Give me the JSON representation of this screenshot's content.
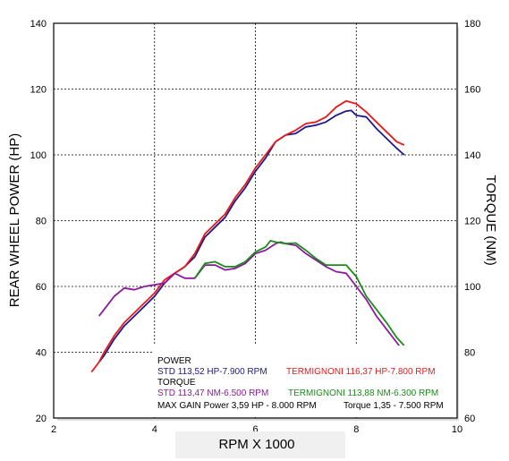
{
  "chart_data": {
    "type": "line",
    "xlabel": "RPM X 1000",
    "ylabel_left": "REAR WHEEL POWER (HP)",
    "ylabel_right": "TORQUE (NM)",
    "xlim": [
      2,
      10
    ],
    "ylim_left": [
      20,
      140
    ],
    "ylim_right": [
      60,
      180
    ],
    "xticks": [
      "2",
      "4",
      "6",
      "8",
      "10"
    ],
    "yticks_left": [
      "20",
      "40",
      "60",
      "80",
      "100",
      "120",
      "140"
    ],
    "yticks_right": [
      "60",
      "80",
      "100",
      "120",
      "140",
      "160",
      "180"
    ],
    "grid": true,
    "legend_placement": "bottom-center",
    "legend": {
      "power_heading": "POWER",
      "torque_heading": "TORQUE",
      "std_power": "STD 113,52 HP-7.900 RPM",
      "term_power": "TERMIGNONI 116,37 HP-7.800 RPM",
      "std_torque": "STD 113,47 NM-6.500 RPM",
      "term_torque": "TERMIGNONI 113,88 NM-6.300 RPM",
      "max_gain": "MAX GAIN Power 3,59 HP - 8.000 RPM",
      "max_gain_torque": "Torque 1,35 - 7.500 RPM"
    },
    "series": [
      {
        "name": "STD power",
        "axis": "left",
        "color": "#1a1a8c",
        "x": [
          2.9,
          3.0,
          3.2,
          3.4,
          3.6,
          3.8,
          4.0,
          4.2,
          4.4,
          4.6,
          4.8,
          5.0,
          5.2,
          5.4,
          5.6,
          5.8,
          6.0,
          6.2,
          6.4,
          6.6,
          6.8,
          7.0,
          7.2,
          7.4,
          7.6,
          7.8,
          7.9,
          8.0,
          8.2,
          8.4,
          8.6,
          8.8,
          8.95
        ],
        "y": [
          37,
          39,
          44,
          48,
          51,
          54,
          57,
          61,
          64,
          66,
          69,
          75,
          78,
          81,
          86,
          90,
          95,
          99,
          104,
          106,
          106.5,
          108.5,
          109,
          110,
          112,
          113.3,
          113.5,
          112,
          111.5,
          108,
          105,
          102,
          100
        ]
      },
      {
        "name": "TERMIGNONI power",
        "axis": "left",
        "color": "#e8191c",
        "x": [
          2.75,
          2.9,
          3.0,
          3.2,
          3.4,
          3.6,
          3.8,
          4.0,
          4.2,
          4.4,
          4.6,
          4.8,
          5.0,
          5.2,
          5.4,
          5.6,
          5.8,
          6.0,
          6.2,
          6.4,
          6.6,
          6.8,
          7.0,
          7.2,
          7.4,
          7.6,
          7.8,
          8.0,
          8.2,
          8.4,
          8.6,
          8.8,
          8.95
        ],
        "y": [
          34,
          37,
          40,
          45,
          49,
          52,
          55,
          58,
          62,
          64,
          66,
          70,
          76,
          79,
          82,
          87,
          91,
          96,
          100,
          104,
          106,
          107.5,
          109.5,
          110,
          111.5,
          114.5,
          116.4,
          115.5,
          113,
          110,
          107,
          104,
          103
        ]
      },
      {
        "name": "STD torque",
        "axis": "right",
        "color": "#8c1a9c",
        "x": [
          2.9,
          3.0,
          3.2,
          3.4,
          3.6,
          3.8,
          4.0,
          4.2,
          4.4,
          4.6,
          4.8,
          5.0,
          5.2,
          5.4,
          5.6,
          5.8,
          6.0,
          6.2,
          6.4,
          6.5,
          6.6,
          6.8,
          7.0,
          7.2,
          7.4,
          7.6,
          7.8,
          8.0,
          8.2,
          8.4,
          8.6,
          8.8,
          8.95
        ],
        "y": [
          91,
          93,
          97,
          99.5,
          99,
          100,
          100.5,
          101,
          104,
          102.5,
          102.5,
          106.5,
          106.5,
          105,
          105.5,
          107,
          110,
          111,
          113,
          113.5,
          113,
          112.5,
          110,
          108,
          106,
          104.5,
          104,
          100,
          96,
          91,
          87,
          83,
          80
        ]
      },
      {
        "name": "TERMIGNONI torque",
        "axis": "right",
        "color": "#1a8c1a",
        "x": [
          4.8,
          5.0,
          5.2,
          5.4,
          5.6,
          5.8,
          6.0,
          6.2,
          6.3,
          6.4,
          6.6,
          6.8,
          7.0,
          7.2,
          7.4,
          7.6,
          7.8,
          8.0,
          8.2,
          8.4,
          8.6,
          8.8,
          8.95
        ],
        "y": [
          102.5,
          107,
          107.5,
          106,
          106,
          107.5,
          110.5,
          112,
          113.9,
          113.5,
          113,
          113.2,
          111,
          108.5,
          106.5,
          106.5,
          106.5,
          103,
          97,
          93,
          89,
          84.5,
          82
        ]
      }
    ]
  }
}
